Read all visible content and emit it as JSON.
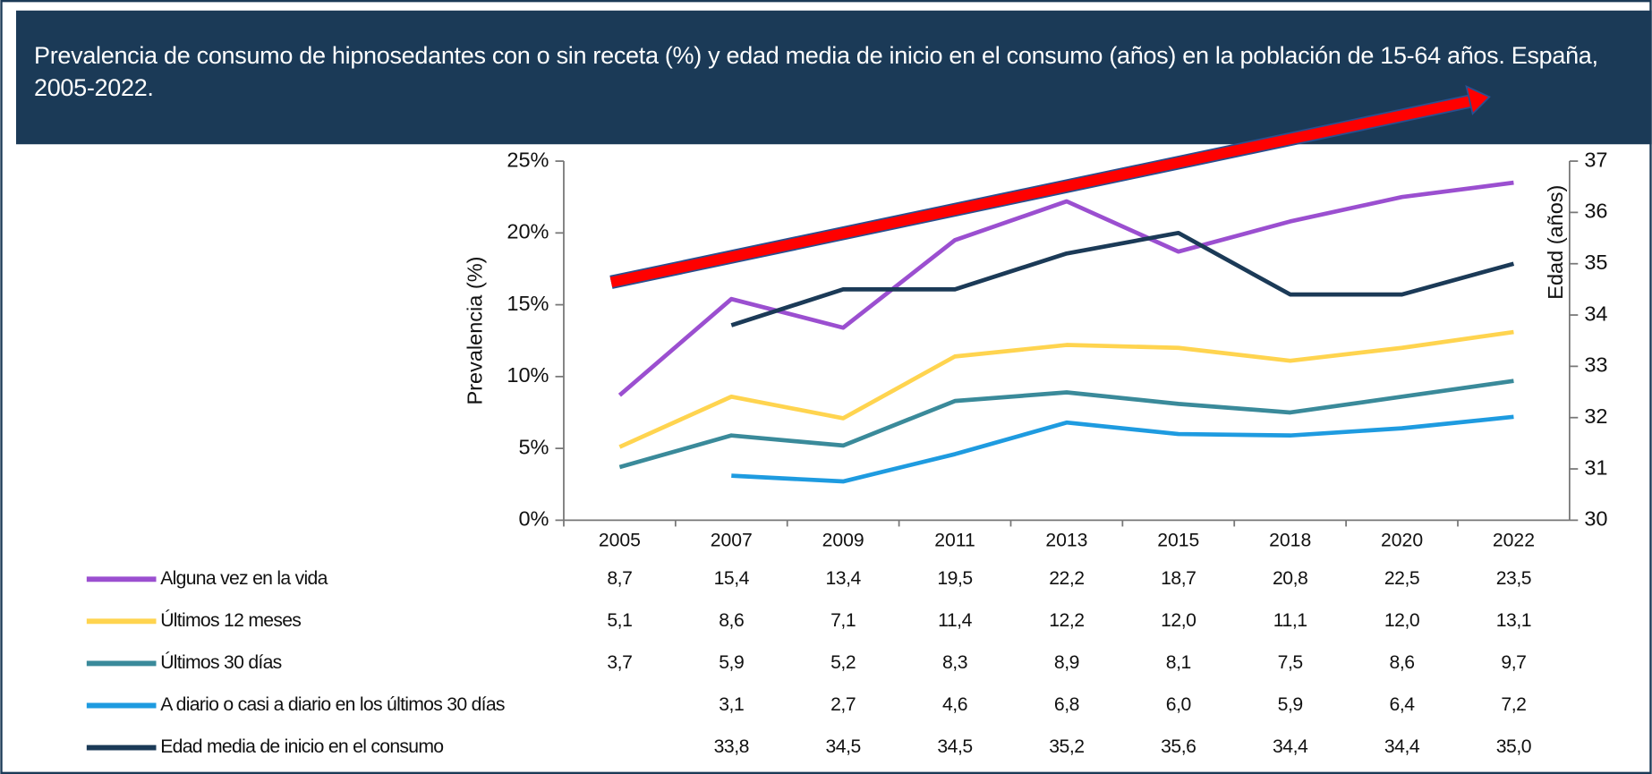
{
  "chart_data": {
    "type": "line",
    "title": "Prevalencia de consumo de hipnosedantes con o sin receta (%) y edad media de inicio en el consumo (años) en la población de 15-64 años. España, 2005-2022.",
    "ylabel": "Prevalencia (%)",
    "y2label": "Edad (años)",
    "categories": [
      "2005",
      "2007",
      "2009",
      "2011",
      "2013",
      "2015",
      "2018",
      "2020",
      "2022"
    ],
    "ylim": [
      0,
      25
    ],
    "yticks": [
      {
        "value": 0,
        "label": "0%"
      },
      {
        "value": 5,
        "label": "5%"
      },
      {
        "value": 10,
        "label": "10%"
      },
      {
        "value": 15,
        "label": "15%"
      },
      {
        "value": 20,
        "label": "20%"
      },
      {
        "value": 25,
        "label": "25%"
      }
    ],
    "y2lim": [
      30,
      37
    ],
    "y2ticks": [
      30,
      31,
      32,
      33,
      34,
      35,
      36,
      37
    ],
    "series": [
      {
        "name": "Alguna vez en la vida",
        "color": "#9b4fd0",
        "values": [
          8.7,
          15.4,
          13.4,
          19.5,
          22.2,
          18.7,
          20.8,
          22.5,
          23.5
        ],
        "value_labels": [
          "8,7",
          "15,4",
          "13,4",
          "19,5",
          "22,2",
          "18,7",
          "20,8",
          "22,5",
          "23,5"
        ]
      },
      {
        "name": "Últimos 12 meses",
        "color": "#ffd44f",
        "values": [
          5.1,
          8.6,
          7.1,
          11.4,
          12.2,
          12.0,
          11.1,
          12.0,
          13.1
        ],
        "value_labels": [
          "5,1",
          "8,6",
          "7,1",
          "11,4",
          "12,2",
          "12,0",
          "11,1",
          "12,0",
          "13,1"
        ]
      },
      {
        "name": "Últimos 30 días",
        "color": "#3a8a9a",
        "values": [
          3.7,
          5.9,
          5.2,
          8.3,
          8.9,
          8.1,
          7.5,
          8.6,
          9.7
        ],
        "value_labels": [
          "3,7",
          "5,9",
          "5,2",
          "8,3",
          "8,9",
          "8,1",
          "7,5",
          "8,6",
          "9,7"
        ]
      },
      {
        "name": "A diario o casi a diario en los últimos 30 días",
        "color": "#1e9be0",
        "values": [
          null,
          3.1,
          2.7,
          4.6,
          6.8,
          6.0,
          5.9,
          6.4,
          7.2
        ],
        "value_labels": [
          null,
          "3,1",
          "2,7",
          "4,6",
          "6,8",
          "6,0",
          "5,9",
          "6,4",
          "7,2"
        ]
      },
      {
        "name": "Edad media de inicio en el consumo",
        "color": "#1b3a57",
        "axis": "y2",
        "values": [
          null,
          33.8,
          34.5,
          34.5,
          35.2,
          35.6,
          34.4,
          34.4,
          35.0
        ],
        "value_labels": [
          null,
          "33,8",
          "34,5",
          "34,5",
          "35,2",
          "35,6",
          "34,4",
          "34,4",
          "35,0"
        ]
      }
    ]
  }
}
